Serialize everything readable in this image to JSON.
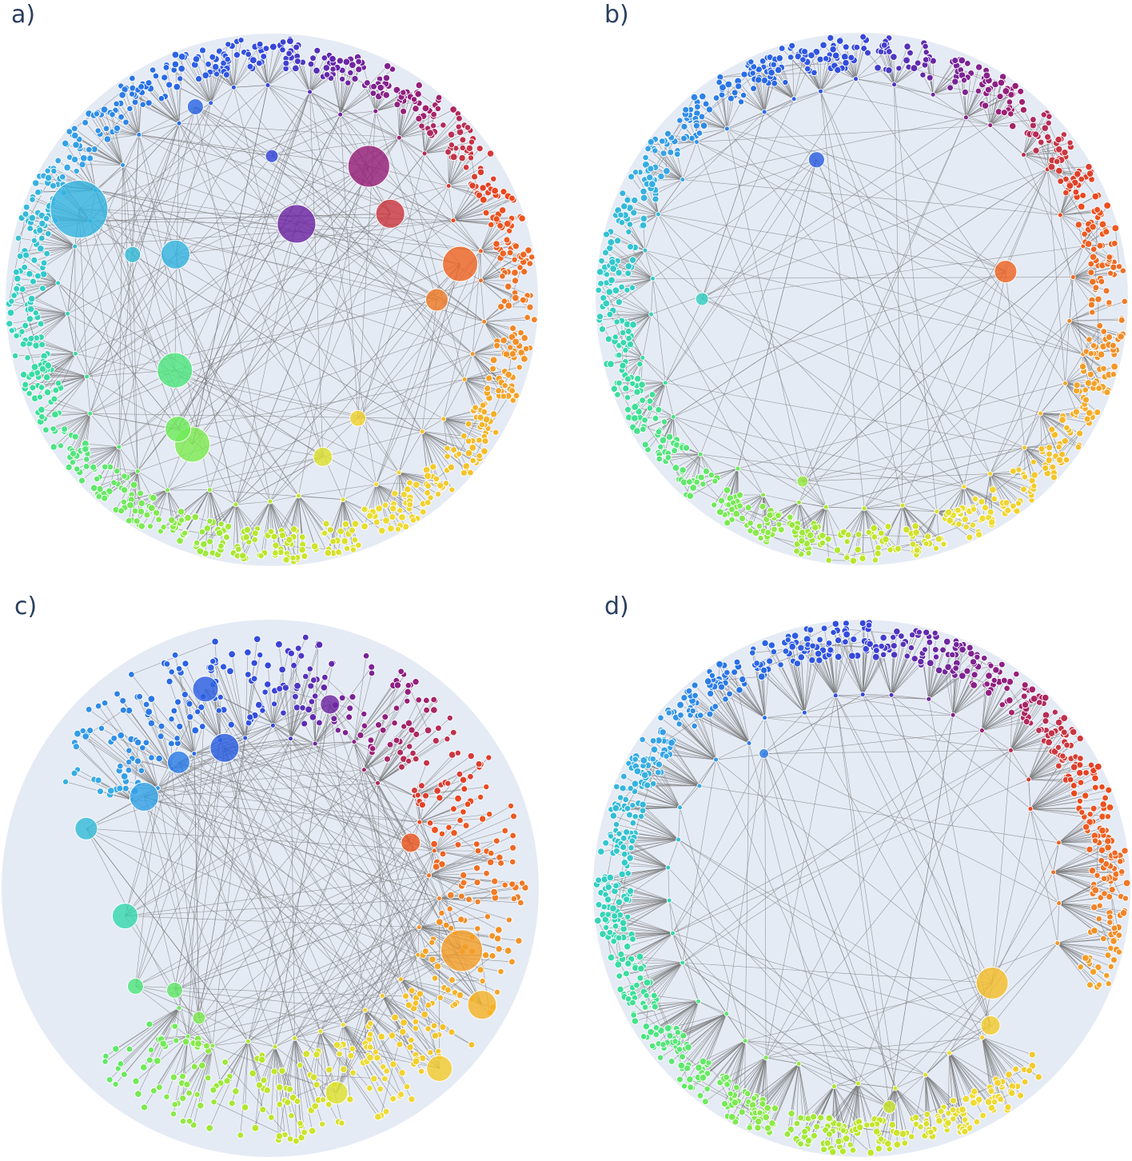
{
  "figure": {
    "background_color": "#ffffff",
    "disk_color": "#e5ebf5",
    "edge_color": "#7a7a7a",
    "node_stroke": "#ffffff",
    "panels": [
      {
        "id": "a",
        "label": "a)",
        "layout": "hyperbolic-tree",
        "hub_colors": [
          "#48bfe8",
          "#3c4fd0",
          "#3d38c8",
          "#6a3fc0",
          "#8a2a8c",
          "#9fe02e",
          "#56e07e",
          "#e66a2a",
          "#f0a830",
          "#e0c020"
        ],
        "node_count_estimate": 900
      },
      {
        "id": "b",
        "label": "b)",
        "layout": "hyperbolic-tree",
        "hub_colors": [
          "#3a3cc8",
          "#56e07e",
          "#e63a2a",
          "#f5d630"
        ],
        "node_count_estimate": 900
      },
      {
        "id": "c",
        "label": "c)",
        "layout": "hyperbolic-tree",
        "hub_colors": [
          "#2d4ce0",
          "#e83a1f",
          "#f5c030",
          "#b8e020",
          "#3a9ae8",
          "#8a2a8c"
        ],
        "node_count_estimate": 700
      },
      {
        "id": "d",
        "label": "d)",
        "layout": "hyperbolic-tree",
        "hub_colors": [
          "#2d5ae8",
          "#f0b030",
          "#e83a1f"
        ],
        "node_count_estimate": 1000
      }
    ]
  }
}
